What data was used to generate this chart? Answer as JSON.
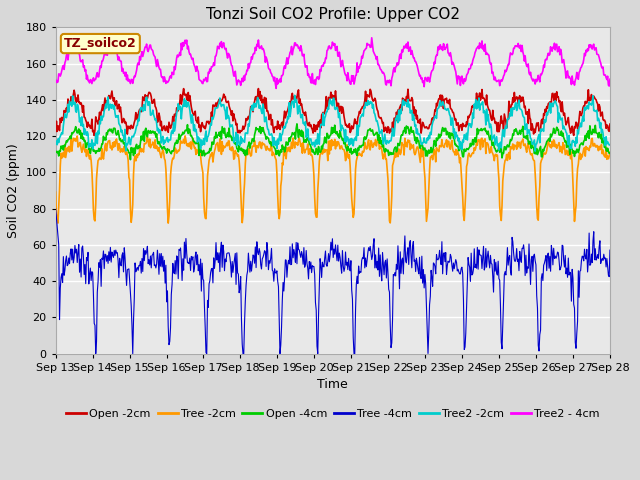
{
  "title": "Tonzi Soil CO2 Profile: Upper CO2",
  "xlabel": "Time",
  "ylabel": "Soil CO2 (ppm)",
  "ylim": [
    0,
    180
  ],
  "yticks": [
    0,
    20,
    40,
    60,
    80,
    100,
    120,
    140,
    160,
    180
  ],
  "n_days": 15,
  "x_tick_labels": [
    "Sep 13",
    "Sep 14",
    "Sep 15",
    "Sep 16",
    "Sep 17",
    "Sep 18",
    "Sep 19",
    "Sep 20",
    "Sep 21",
    "Sep 22",
    "Sep 23",
    "Sep 24",
    "Sep 25",
    "Sep 26",
    "Sep 27",
    "Sep 28"
  ],
  "legend_label": "TZ_soilco2",
  "series": [
    {
      "name": "Open -2cm",
      "color": "#cc0000",
      "lw": 1.2
    },
    {
      "name": "Tree -2cm",
      "color": "#ff9900",
      "lw": 1.2
    },
    {
      "name": "Open -4cm",
      "color": "#00cc00",
      "lw": 1.2
    },
    {
      "name": "Tree -4cm",
      "color": "#0000cc",
      "lw": 0.8
    },
    {
      "name": "Tree2 -2cm",
      "color": "#00cccc",
      "lw": 1.2
    },
    {
      "name": "Tree2 - 4cm",
      "color": "#ff00ff",
      "lw": 1.2
    }
  ],
  "plot_bg_color": "#e8e8e8",
  "fig_bg_color": "#d8d8d8",
  "grid_color": "#ffffff",
  "box_facecolor": "#ffffcc",
  "box_edgecolor": "#cc8800",
  "box_text_color": "#880000",
  "title_fontsize": 11,
  "axis_fontsize": 9,
  "tick_fontsize": 8
}
